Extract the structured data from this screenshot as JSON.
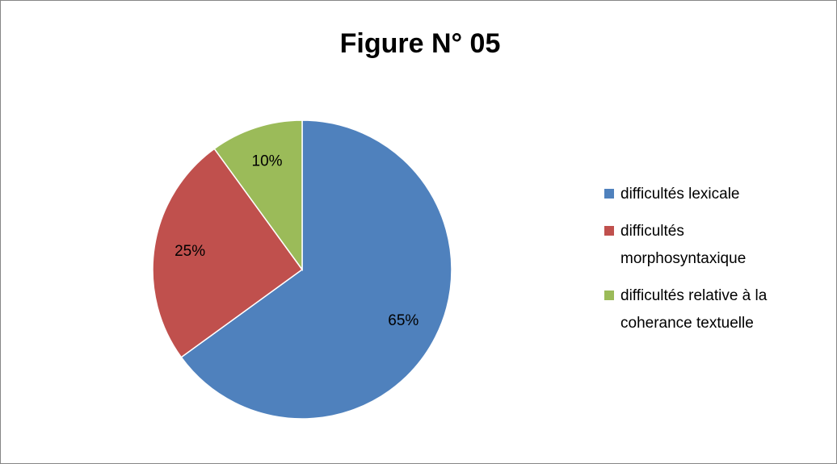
{
  "chart_data": {
    "type": "pie",
    "title": "Figure N° 05",
    "categories": [
      "difficultés lexicale",
      "difficultés morphosyntaxique",
      "difficultés relative à la coherance textuelle"
    ],
    "values": [
      65,
      25,
      10
    ],
    "value_labels": [
      "65%",
      "25%",
      "10%"
    ],
    "colors": [
      "#4f81bd",
      "#c0504d",
      "#9bbb59"
    ],
    "legend": "right"
  }
}
